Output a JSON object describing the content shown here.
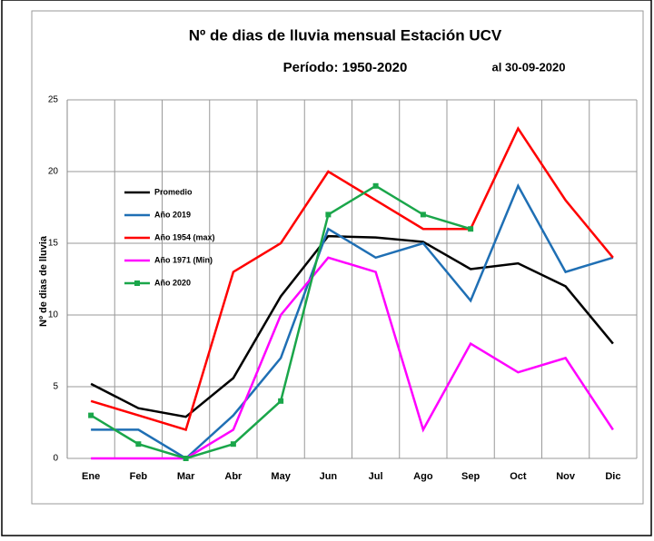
{
  "chart_data": {
    "type": "line",
    "title": "Nº de dias de lluvia mensual Estación UCV",
    "subtitle": "Período:  1950-2020",
    "annotation": "al 30-09-2020",
    "y_label": "Nº de dias de lluvia",
    "categories": [
      "Ene",
      "Feb",
      "Mar",
      "Abr",
      "May",
      "Jun",
      "Jul",
      "Ago",
      "Sep",
      "Oct",
      "Nov",
      "Dic"
    ],
    "series": [
      {
        "name": "Promedio",
        "color": "#000000",
        "values": [
          5.2,
          3.5,
          2.9,
          5.6,
          11.3,
          15.5,
          15.4,
          15.1,
          13.2,
          13.6,
          12.0,
          8.0
        ]
      },
      {
        "name": "Año 2019",
        "color": "#1f6fb4",
        "values": [
          2,
          2,
          0,
          3,
          7,
          16,
          14,
          15,
          11,
          19,
          13,
          14
        ]
      },
      {
        "name": "Año 1954 (max)",
        "color": "#ff0000",
        "values": [
          4,
          3,
          2,
          13,
          15,
          20,
          18,
          16,
          16,
          23,
          18,
          14
        ]
      },
      {
        "name": "Año 1971 (Min)",
        "color": "#ff00ff",
        "values": [
          0,
          0,
          0,
          2,
          10,
          14,
          13,
          2,
          8,
          6,
          7,
          2
        ]
      },
      {
        "name": "Año 2020",
        "color": "#1aa64a",
        "markers": true,
        "values": [
          3,
          1,
          0,
          1,
          4,
          17,
          19,
          17,
          16,
          null,
          null,
          null
        ]
      }
    ],
    "ylim": [
      0,
      25
    ],
    "yticks": [
      0,
      5,
      10,
      15,
      20,
      25
    ],
    "grid": true
  }
}
